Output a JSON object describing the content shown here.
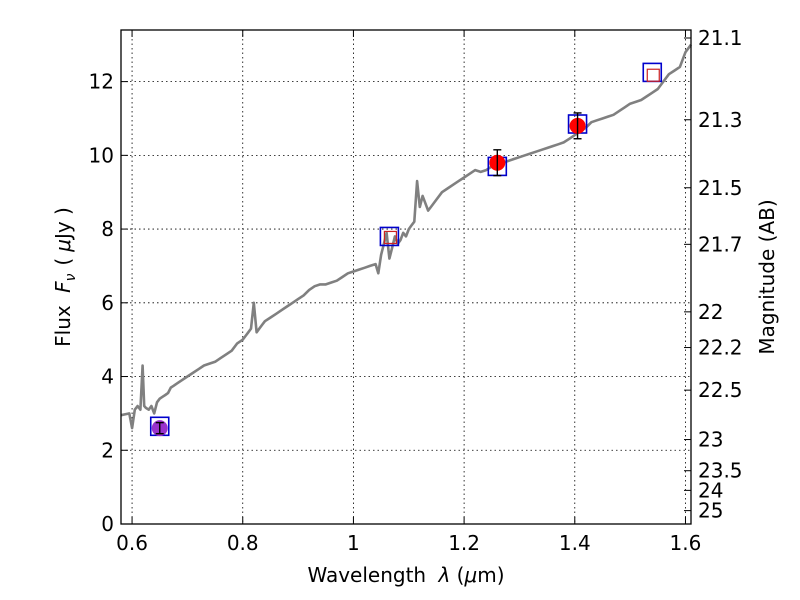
{
  "chart_data": {
    "type": "scatter",
    "title": "",
    "xlabel": "Wavelength  λ (μm)",
    "ylabel": "Flux  Fν  ( μJy )",
    "y2label": "Magnitude (AB)",
    "xlim": [
      0.58,
      1.61
    ],
    "ylim": [
      0,
      13.4
    ],
    "grid": true,
    "x_ticks": [
      {
        "value": 0.6,
        "label": "0.6"
      },
      {
        "value": 0.8,
        "label": "0.8"
      },
      {
        "value": 1.0,
        "label": "1"
      },
      {
        "value": 1.2,
        "label": "1.2"
      },
      {
        "value": 1.4,
        "label": "1.4"
      },
      {
        "value": 1.6,
        "label": "1.6"
      }
    ],
    "y_ticks": [
      {
        "value": 0,
        "label": "0"
      },
      {
        "value": 2,
        "label": "2"
      },
      {
        "value": 4,
        "label": "4"
      },
      {
        "value": 6,
        "label": "6"
      },
      {
        "value": 8,
        "label": "8"
      },
      {
        "value": 10,
        "label": "10"
      },
      {
        "value": 12,
        "label": "12"
      }
    ],
    "y2_ticks": [
      {
        "value": 21.1,
        "label": "21.1"
      },
      {
        "value": 21.3,
        "label": "21.3"
      },
      {
        "value": 21.5,
        "label": "21.5"
      },
      {
        "value": 21.7,
        "label": "21.7"
      },
      {
        "value": 22.0,
        "label": "22"
      },
      {
        "value": 22.2,
        "label": "22.2"
      },
      {
        "value": 22.5,
        "label": "22.5"
      },
      {
        "value": 23.0,
        "label": "23"
      },
      {
        "value": 23.5,
        "label": "23.5"
      },
      {
        "value": 24.0,
        "label": "24"
      },
      {
        "value": 25.0,
        "label": "25"
      }
    ],
    "series": [
      {
        "kind": "line",
        "color": "#808080",
        "x": [
          0.58,
          0.595,
          0.6,
          0.605,
          0.61,
          0.615,
          0.619,
          0.622,
          0.625,
          0.63,
          0.635,
          0.64,
          0.645,
          0.65,
          0.655,
          0.66,
          0.665,
          0.67,
          0.675,
          0.68,
          0.69,
          0.7,
          0.71,
          0.72,
          0.73,
          0.74,
          0.75,
          0.76,
          0.77,
          0.78,
          0.79,
          0.8,
          0.805,
          0.81,
          0.815,
          0.82,
          0.825,
          0.83,
          0.835,
          0.84,
          0.85,
          0.86,
          0.87,
          0.88,
          0.89,
          0.9,
          0.91,
          0.92,
          0.93,
          0.94,
          0.95,
          0.96,
          0.97,
          0.98,
          0.99,
          1.0,
          1.01,
          1.02,
          1.03,
          1.04,
          1.045,
          1.05,
          1.055,
          1.06,
          1.065,
          1.07,
          1.075,
          1.08,
          1.085,
          1.09,
          1.095,
          1.1,
          1.105,
          1.11,
          1.115,
          1.12,
          1.125,
          1.13,
          1.135,
          1.14,
          1.15,
          1.16,
          1.17,
          1.18,
          1.19,
          1.2,
          1.21,
          1.22,
          1.23,
          1.24,
          1.25,
          1.26,
          1.27,
          1.28,
          1.29,
          1.3,
          1.31,
          1.32,
          1.33,
          1.34,
          1.35,
          1.36,
          1.37,
          1.38,
          1.39,
          1.4,
          1.41,
          1.42,
          1.43,
          1.44,
          1.45,
          1.46,
          1.47,
          1.48,
          1.49,
          1.5,
          1.51,
          1.52,
          1.53,
          1.54,
          1.55,
          1.56,
          1.57,
          1.58,
          1.59,
          1.6,
          1.61
        ],
        "y": [
          2.95,
          3.0,
          2.6,
          3.1,
          3.2,
          3.1,
          4.3,
          3.2,
          3.15,
          3.1,
          3.2,
          3.0,
          3.3,
          3.4,
          3.45,
          3.5,
          3.55,
          3.7,
          3.75,
          3.8,
          3.9,
          4.0,
          4.1,
          4.2,
          4.3,
          4.35,
          4.4,
          4.5,
          4.6,
          4.7,
          4.9,
          5.0,
          5.1,
          5.2,
          5.3,
          6.0,
          5.2,
          5.3,
          5.4,
          5.5,
          5.6,
          5.7,
          5.8,
          5.9,
          6.0,
          6.1,
          6.2,
          6.35,
          6.45,
          6.5,
          6.5,
          6.55,
          6.6,
          6.7,
          6.8,
          6.85,
          6.9,
          6.95,
          7.0,
          7.05,
          6.8,
          7.3,
          7.6,
          7.9,
          7.2,
          7.5,
          7.8,
          7.6,
          7.7,
          7.9,
          7.8,
          8.0,
          8.1,
          8.2,
          9.3,
          8.6,
          8.9,
          8.7,
          8.5,
          8.6,
          8.8,
          9.0,
          9.1,
          9.2,
          9.3,
          9.4,
          9.5,
          9.6,
          9.55,
          9.6,
          9.7,
          9.75,
          9.8,
          9.85,
          9.9,
          9.95,
          10.0,
          10.05,
          10.1,
          10.15,
          10.2,
          10.25,
          10.3,
          10.35,
          10.45,
          10.55,
          10.65,
          10.75,
          10.9,
          10.95,
          11.0,
          11.05,
          11.1,
          11.2,
          11.3,
          11.4,
          11.45,
          11.5,
          11.6,
          11.7,
          11.8,
          12.0,
          12.2,
          12.3,
          12.4,
          12.8,
          13.0
        ]
      },
      {
        "kind": "open-square",
        "color": "#0000cc",
        "x": [
          0.65,
          1.065,
          1.26,
          1.405,
          1.54
        ],
        "y": [
          2.65,
          7.8,
          9.7,
          10.85,
          12.25
        ]
      },
      {
        "kind": "red-open-square",
        "color": "#cc2222",
        "x": [
          1.065,
          1.54
        ],
        "y": [
          7.8,
          12.2
        ]
      },
      {
        "kind": "filled-point",
        "color": "#ff0000",
        "x": [
          1.26,
          1.405
        ],
        "y": [
          9.8,
          10.8
        ],
        "err": [
          0.35,
          0.35
        ]
      },
      {
        "kind": "filled-point",
        "color": "#9932cc",
        "x": [
          0.65
        ],
        "y": [
          2.6
        ],
        "err": [
          0.15
        ]
      }
    ]
  }
}
